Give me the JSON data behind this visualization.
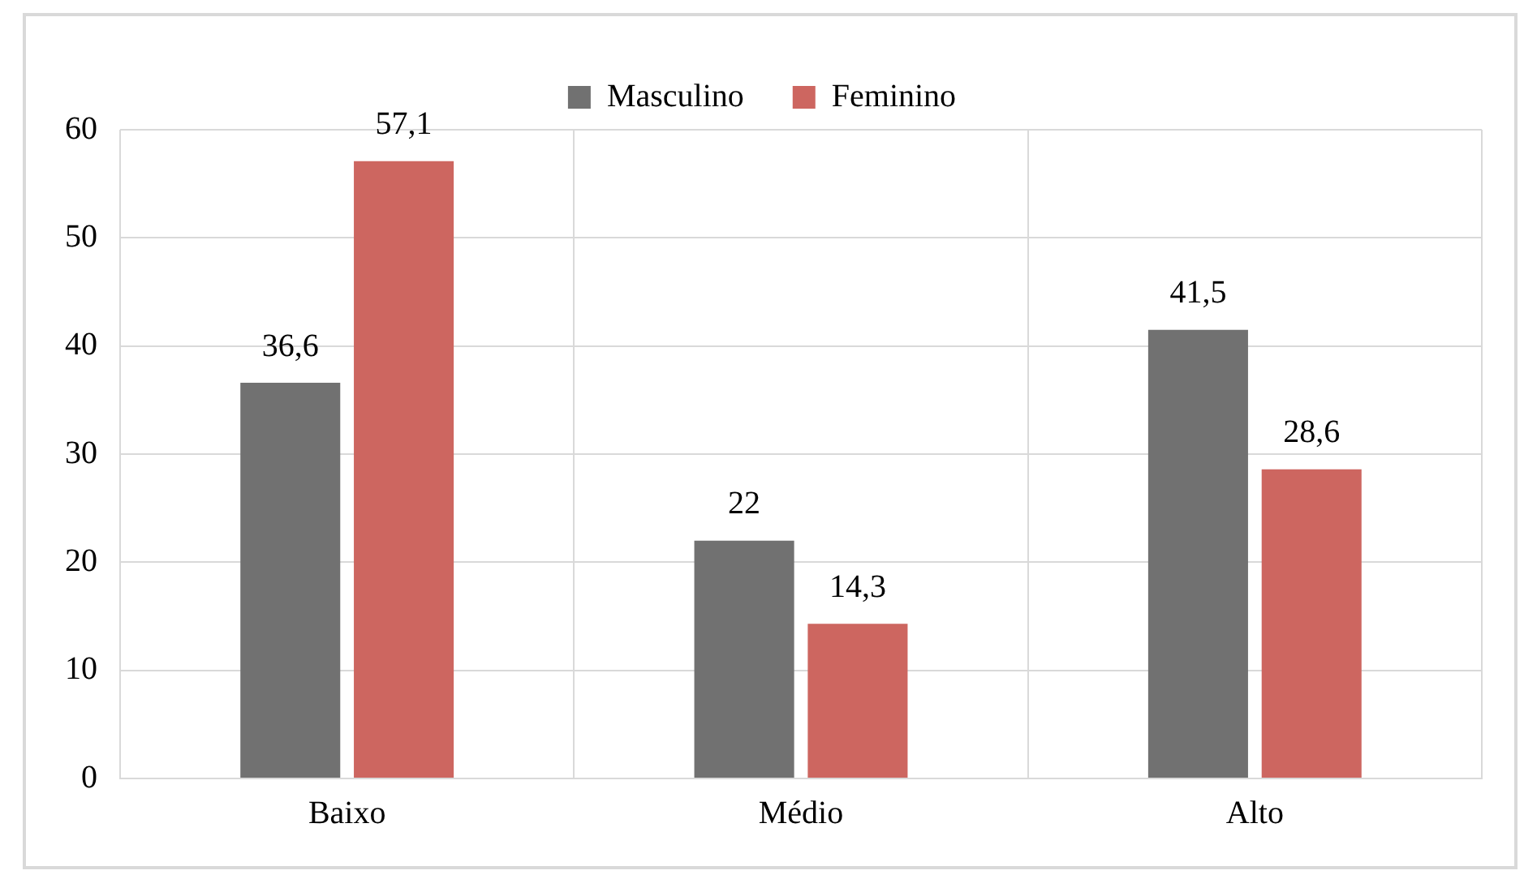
{
  "chart_data": {
    "type": "bar",
    "categories": [
      "Baixo",
      "Médio",
      "Alto"
    ],
    "series": [
      {
        "name": "Masculino",
        "color": "#717171",
        "values": [
          36.6,
          22,
          41.5
        ],
        "value_labels": [
          "36,6",
          "22",
          "41,5"
        ]
      },
      {
        "name": "Feminino",
        "color": "#cd6660",
        "values": [
          57.1,
          14.3,
          28.6
        ],
        "value_labels": [
          "57,1",
          "14,3",
          "28,6"
        ]
      }
    ],
    "ylim": [
      0,
      60
    ],
    "yticks": [
      0,
      10,
      20,
      30,
      40,
      50,
      60
    ],
    "grid": true,
    "legend": "top"
  }
}
